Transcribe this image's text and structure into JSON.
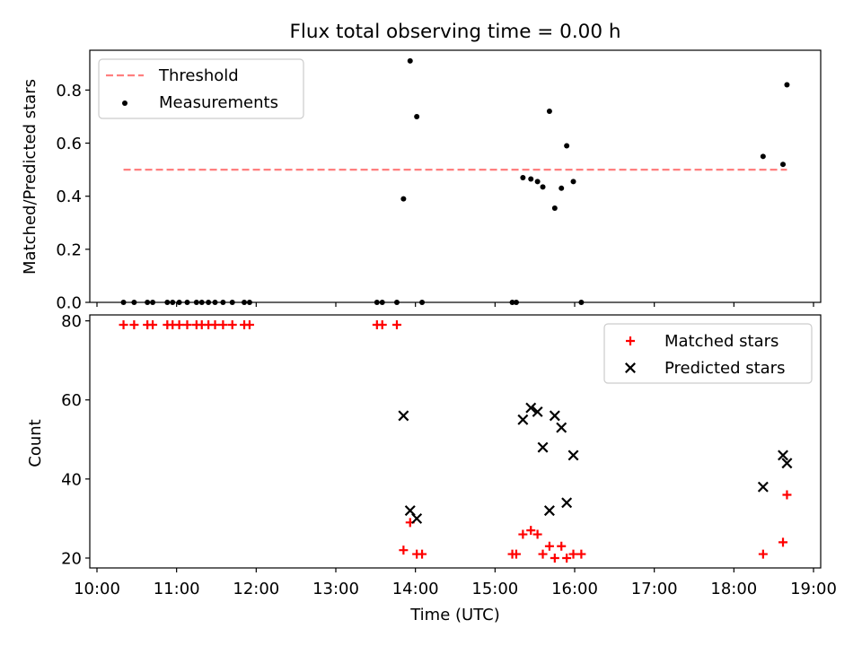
{
  "chart_data": [
    {
      "type": "line",
      "title": "Flux total observing time = 0.00 h",
      "xlabel": "",
      "ylabel": "Matched/Predicted stars",
      "xlim": [
        "10:00",
        "19:00"
      ],
      "ylim": [
        0,
        0.95
      ],
      "yticks": [
        0.0,
        0.2,
        0.4,
        0.6,
        0.8
      ],
      "ytick_labels": [
        "0.0",
        "0.2",
        "0.4",
        "0.6",
        "0.8"
      ],
      "legend": "top-left",
      "series": [
        {
          "name": "Threshold",
          "style": "dashed-line",
          "color": "#ff7f7f",
          "points": [
            [
              "10:20",
              0.5
            ],
            [
              "18:40",
              0.5
            ]
          ]
        },
        {
          "name": "Measurements",
          "style": "scatter-dot",
          "color": "#000000",
          "points": [
            [
              "10:20",
              0.0
            ],
            [
              "10:28",
              0.0
            ],
            [
              "10:38",
              0.0
            ],
            [
              "10:42",
              0.0
            ],
            [
              "10:53",
              0.0
            ],
            [
              "10:57",
              0.0
            ],
            [
              "11:02",
              0.0
            ],
            [
              "11:08",
              0.0
            ],
            [
              "11:15",
              0.0
            ],
            [
              "11:19",
              0.0
            ],
            [
              "11:24",
              0.0
            ],
            [
              "11:29",
              0.0
            ],
            [
              "11:35",
              0.0
            ],
            [
              "11:42",
              0.0
            ],
            [
              "11:51",
              0.0
            ],
            [
              "11:55",
              0.0
            ],
            [
              "13:31",
              0.0
            ],
            [
              "13:35",
              0.0
            ],
            [
              "13:46",
              0.0
            ],
            [
              "13:51",
              0.39
            ],
            [
              "13:56",
              0.91
            ],
            [
              "14:01",
              0.7
            ],
            [
              "14:05",
              0.0
            ],
            [
              "15:13",
              0.0
            ],
            [
              "15:16",
              0.0
            ],
            [
              "15:21",
              0.47
            ],
            [
              "15:27",
              0.465
            ],
            [
              "15:32",
              0.455
            ],
            [
              "15:36",
              0.435
            ],
            [
              "15:41",
              0.72
            ],
            [
              "15:45",
              0.355
            ],
            [
              "15:50",
              0.43
            ],
            [
              "15:54",
              0.59
            ],
            [
              "15:59",
              0.455
            ],
            [
              "16:05",
              0.0
            ],
            [
              "18:22",
              0.55
            ],
            [
              "18:37",
              0.52
            ],
            [
              "18:40",
              0.82
            ]
          ]
        }
      ]
    },
    {
      "type": "scatter",
      "title": "",
      "xlabel": "Time (UTC)",
      "ylabel": "Count",
      "xlim": [
        "10:00",
        "19:00"
      ],
      "ylim": [
        17.5,
        81.5
      ],
      "yticks": [
        20,
        40,
        60,
        80
      ],
      "ytick_labels": [
        "20",
        "40",
        "60",
        "80"
      ],
      "xticks": [
        "10:00",
        "11:00",
        "12:00",
        "13:00",
        "14:00",
        "15:00",
        "16:00",
        "17:00",
        "18:00",
        "19:00"
      ],
      "xtick_labels": [
        "10:00",
        "11:00",
        "12:00",
        "13:00",
        "14:00",
        "15:00",
        "16:00",
        "17:00",
        "18:00",
        "19:00"
      ],
      "legend": "top-right",
      "series": [
        {
          "name": "Matched stars",
          "marker": "plus",
          "color": "#ff0000",
          "points": [
            [
              "10:20",
              79
            ],
            [
              "10:28",
              79
            ],
            [
              "10:38",
              79
            ],
            [
              "10:42",
              79
            ],
            [
              "10:53",
              79
            ],
            [
              "10:57",
              79
            ],
            [
              "11:02",
              79
            ],
            [
              "11:08",
              79
            ],
            [
              "11:15",
              79
            ],
            [
              "11:19",
              79
            ],
            [
              "11:24",
              79
            ],
            [
              "11:29",
              79
            ],
            [
              "11:35",
              79
            ],
            [
              "11:42",
              79
            ],
            [
              "11:51",
              79
            ],
            [
              "11:55",
              79
            ],
            [
              "13:31",
              79
            ],
            [
              "13:35",
              79
            ],
            [
              "13:46",
              79
            ],
            [
              "13:51",
              22
            ],
            [
              "13:56",
              29
            ],
            [
              "14:01",
              21
            ],
            [
              "14:05",
              21
            ],
            [
              "15:13",
              21
            ],
            [
              "15:16",
              21
            ],
            [
              "15:21",
              26
            ],
            [
              "15:27",
              27
            ],
            [
              "15:32",
              26
            ],
            [
              "15:36",
              21
            ],
            [
              "15:41",
              23
            ],
            [
              "15:45",
              20
            ],
            [
              "15:50",
              23
            ],
            [
              "15:54",
              20
            ],
            [
              "15:59",
              21
            ],
            [
              "16:05",
              21
            ],
            [
              "18:22",
              21
            ],
            [
              "18:37",
              24
            ],
            [
              "18:40",
              36
            ]
          ]
        },
        {
          "name": "Predicted stars",
          "marker": "x",
          "color": "#000000",
          "points": [
            [
              "13:51",
              56
            ],
            [
              "13:56",
              32
            ],
            [
              "14:01",
              30
            ],
            [
              "15:21",
              55
            ],
            [
              "15:27",
              58
            ],
            [
              "15:32",
              57
            ],
            [
              "15:36",
              48
            ],
            [
              "15:41",
              32
            ],
            [
              "15:45",
              56
            ],
            [
              "15:50",
              53
            ],
            [
              "15:54",
              34
            ],
            [
              "15:59",
              46
            ],
            [
              "18:22",
              38
            ],
            [
              "18:37",
              46
            ],
            [
              "18:40",
              44
            ]
          ]
        }
      ]
    }
  ]
}
